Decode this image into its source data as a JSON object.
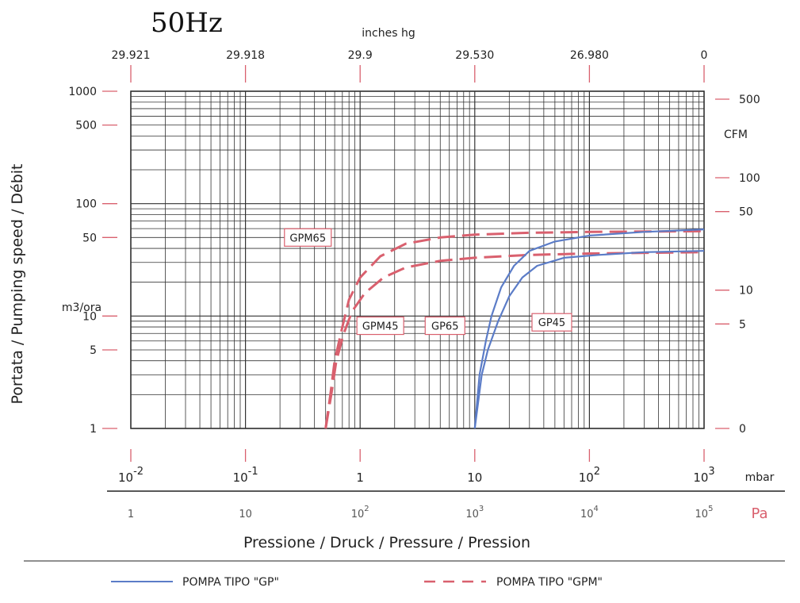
{
  "title": "50Hz",
  "chart_data": {
    "type": "line",
    "scale": {
      "x": "log",
      "y": "log"
    },
    "grid": true,
    "xlabel": "Pressione / Druck / Pressure / Pression",
    "ylabel": "Portata / Pumping speed / Débit",
    "x_unit": "mbar",
    "x_unit_pa": "Pa",
    "x_top_unit": "inches hg",
    "y_unit": "m3/ora",
    "y_right_unit": "CFM",
    "xlim": [
      0.01,
      1000
    ],
    "ylim": [
      1,
      1000
    ],
    "x_ticks_mbar": [
      {
        "value": 0.01,
        "base": "10",
        "exp": "-2"
      },
      {
        "value": 0.1,
        "base": "10",
        "exp": "-1"
      },
      {
        "value": 1,
        "base": "1",
        "exp": ""
      },
      {
        "value": 10,
        "base": "10",
        "exp": ""
      },
      {
        "value": 100,
        "base": "10",
        "exp": "2"
      },
      {
        "value": 1000,
        "base": "10",
        "exp": "3"
      }
    ],
    "x_ticks_pa": [
      {
        "value": 0.01,
        "base": "1",
        "exp": ""
      },
      {
        "value": 0.1,
        "base": "10",
        "exp": ""
      },
      {
        "value": 1,
        "base": "10",
        "exp": "2"
      },
      {
        "value": 10,
        "base": "10",
        "exp": "3"
      },
      {
        "value": 100,
        "base": "10",
        "exp": "4"
      },
      {
        "value": 1000,
        "base": "10",
        "exp": "5"
      }
    ],
    "x_ticks_top": [
      {
        "value": 0.01,
        "label": "29.921"
      },
      {
        "value": 0.1,
        "label": "29.918"
      },
      {
        "value": 1,
        "label": "29.9"
      },
      {
        "value": 10,
        "label": "29.530"
      },
      {
        "value": 100,
        "label": "26.980"
      },
      {
        "value": 1000,
        "label": "0"
      }
    ],
    "y_ticks_left": [
      {
        "value": 1,
        "label": "1"
      },
      {
        "value": 5,
        "label": "5"
      },
      {
        "value": 10,
        "label": "10"
      },
      {
        "value": 50,
        "label": "50"
      },
      {
        "value": 100,
        "label": "100"
      },
      {
        "value": 500,
        "label": "500"
      },
      {
        "value": 1000,
        "label": "1000"
      }
    ],
    "y_ticks_right": [
      {
        "value": 1,
        "label": "0"
      },
      {
        "value": 8.5,
        "label": "5"
      },
      {
        "value": 17,
        "label": "10"
      },
      {
        "value": 85,
        "label": "50"
      },
      {
        "value": 170,
        "label": "100"
      },
      {
        "value": 850,
        "label": "500"
      }
    ],
    "series": [
      {
        "name": "GPM65",
        "style": "dashed",
        "color": "#d9606e",
        "label_at": {
          "x": 0.35,
          "y": 50
        },
        "points": [
          [
            0.5,
            1
          ],
          [
            0.55,
            2
          ],
          [
            0.6,
            4
          ],
          [
            0.7,
            8
          ],
          [
            0.8,
            14
          ],
          [
            1,
            22
          ],
          [
            1.5,
            34
          ],
          [
            2.5,
            44
          ],
          [
            5,
            50
          ],
          [
            10,
            53
          ],
          [
            30,
            55
          ],
          [
            100,
            56
          ],
          [
            1000,
            57
          ]
        ]
      },
      {
        "name": "GPM45",
        "style": "dashed",
        "color": "#d9606e",
        "label_at": {
          "x": 1.5,
          "y": 8.2
        },
        "points": [
          [
            0.5,
            1
          ],
          [
            0.56,
            2
          ],
          [
            0.62,
            4
          ],
          [
            0.72,
            7
          ],
          [
            0.85,
            11
          ],
          [
            1.1,
            16
          ],
          [
            1.6,
            22
          ],
          [
            2.5,
            27
          ],
          [
            5,
            31
          ],
          [
            10,
            33
          ],
          [
            30,
            35
          ],
          [
            100,
            36
          ],
          [
            1000,
            37
          ]
        ]
      },
      {
        "name": "GP65",
        "style": "solid",
        "color": "#5b7cc7",
        "label_at": {
          "x": 5.5,
          "y": 8.2
        },
        "points": [
          [
            10,
            1
          ],
          [
            11,
            3
          ],
          [
            12.5,
            6
          ],
          [
            14,
            10
          ],
          [
            17,
            18
          ],
          [
            22,
            28
          ],
          [
            30,
            38
          ],
          [
            50,
            46
          ],
          [
            100,
            52
          ],
          [
            300,
            56
          ],
          [
            1000,
            59
          ]
        ]
      },
      {
        "name": "GP45",
        "style": "solid",
        "color": "#5b7cc7",
        "label_at": {
          "x": 47,
          "y": 8.8
        },
        "points": [
          [
            10,
            1
          ],
          [
            11.5,
            3
          ],
          [
            13,
            5
          ],
          [
            16,
            9
          ],
          [
            20,
            15
          ],
          [
            26,
            22
          ],
          [
            35,
            28
          ],
          [
            60,
            33
          ],
          [
            120,
            35
          ],
          [
            300,
            37
          ],
          [
            1000,
            38
          ]
        ]
      }
    ],
    "legend": [
      {
        "label": "POMPA TIPO \"GP\"",
        "style": "solid",
        "color": "#5b7cc7"
      },
      {
        "label": "POMPA TIPO \"GPM\"",
        "style": "dashed",
        "color": "#d9606e"
      }
    ],
    "legend_position": "bottom"
  }
}
